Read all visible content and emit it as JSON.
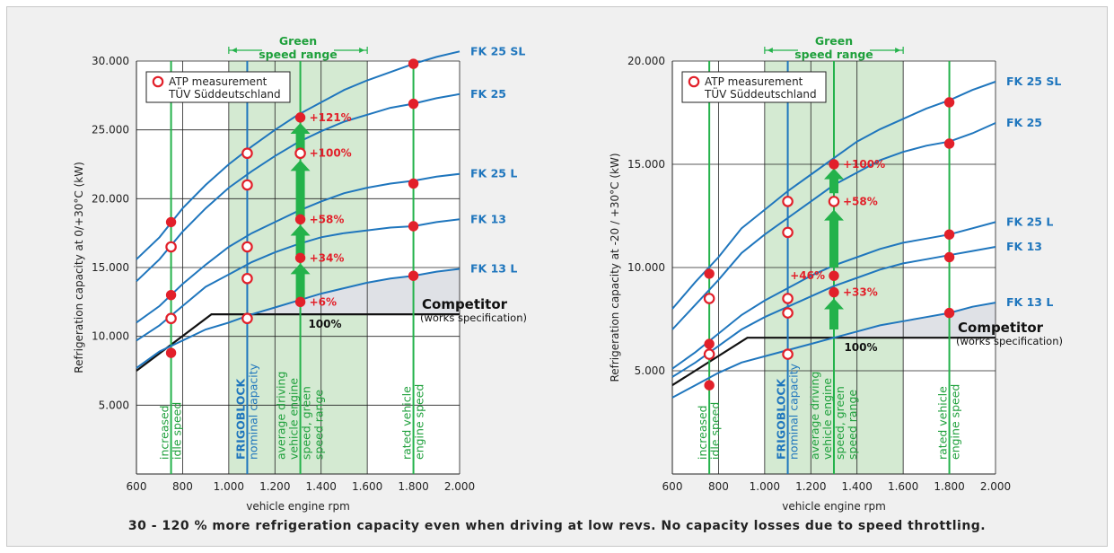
{
  "caption": "30 - 120 % more refrigeration capacity even when driving at low revs. No capacity losses due to speed throttling.",
  "colors": {
    "curve_blue": "#1f76bd",
    "green": "#24b24b",
    "green_text": "#1fa03c",
    "green_band": "#d4ead2",
    "red": "#e2202a",
    "competitor": "#111111",
    "shade": "#dfe1e6"
  },
  "chart_data": [
    {
      "type": "line",
      "xlabel": "vehicle engine rpm",
      "ylabel": "Refrigeration capacity at 0/+30°C (kW)",
      "xlim": [
        600,
        2000
      ],
      "ylim": [
        0,
        30000
      ],
      "xticks": [
        {
          "v": 600,
          "t": "600"
        },
        {
          "v": 800,
          "t": "800"
        },
        {
          "v": 1000,
          "t": "1.000"
        },
        {
          "v": 1200,
          "t": "1.200"
        },
        {
          "v": 1400,
          "t": "1.400"
        },
        {
          "v": 1600,
          "t": "1.600"
        },
        {
          "v": 1800,
          "t": "1.800"
        },
        {
          "v": 2000,
          "t": "2.000"
        }
      ],
      "yticks": [
        {
          "v": 5000,
          "t": "5.000"
        },
        {
          "v": 10000,
          "t": "10.000"
        },
        {
          "v": 15000,
          "t": "15.000"
        },
        {
          "v": 20000,
          "t": "20.000"
        },
        {
          "v": 25000,
          "t": "25.000"
        },
        {
          "v": 30000,
          "t": "30.000"
        }
      ],
      "green_range": {
        "from": 1000,
        "to": 1600,
        "label": "Green\nspeed range"
      },
      "legend": {
        "marker": "open red circle",
        "text": "ATP measurement\nTÜV Süddeutschland",
        "position": "top-left"
      },
      "series": [
        {
          "name": "FK 25 SL",
          "x": [
            600,
            700,
            800,
            900,
            1000,
            1100,
            1200,
            1300,
            1400,
            1500,
            1600,
            1700,
            1800,
            1900,
            2000
          ],
          "y": [
            15600,
            17200,
            19300,
            21000,
            22500,
            23800,
            25000,
            26100,
            27000,
            27900,
            28600,
            29200,
            29800,
            30300,
            30700
          ]
        },
        {
          "name": "FK 25",
          "x": [
            600,
            700,
            800,
            900,
            1000,
            1100,
            1200,
            1300,
            1400,
            1500,
            1600,
            1700,
            1800,
            1900,
            2000
          ],
          "y": [
            14000,
            15600,
            17600,
            19300,
            20800,
            22000,
            23100,
            24100,
            24900,
            25600,
            26100,
            26600,
            26900,
            27300,
            27600
          ]
        },
        {
          "name": "FK 25 L",
          "x": [
            600,
            700,
            800,
            900,
            1000,
            1100,
            1200,
            1300,
            1400,
            1500,
            1600,
            1700,
            1800,
            1900,
            2000
          ],
          "y": [
            11000,
            12200,
            13800,
            15200,
            16500,
            17500,
            18300,
            19100,
            19800,
            20400,
            20800,
            21100,
            21300,
            21600,
            21800
          ]
        },
        {
          "name": "FK 13",
          "x": [
            600,
            700,
            800,
            900,
            1000,
            1100,
            1200,
            1300,
            1400,
            1500,
            1600,
            1700,
            1800,
            1900,
            2000
          ],
          "y": [
            9700,
            10800,
            12200,
            13600,
            14500,
            15400,
            16100,
            16700,
            17200,
            17500,
            17700,
            17900,
            18000,
            18300,
            18500
          ]
        },
        {
          "name": "FK 13 L",
          "x": [
            600,
            700,
            800,
            900,
            1000,
            1100,
            1200,
            1300,
            1400,
            1500,
            1600,
            1700,
            1800,
            1900,
            2000
          ],
          "y": [
            7700,
            8900,
            9700,
            10500,
            11000,
            11600,
            12100,
            12600,
            13100,
            13500,
            13900,
            14200,
            14400,
            14700,
            14900
          ]
        }
      ],
      "competitor": {
        "name": "Competitor",
        "note": "(works specification)",
        "pct": "100%",
        "x": [
          600,
          925,
          2000
        ],
        "y": [
          7500,
          11600,
          11600
        ]
      },
      "vlines": [
        {
          "x": 750,
          "kind": "green",
          "label": "increased\nidle speed"
        },
        {
          "x": 1080,
          "kind": "blue",
          "label": "FRIGOBLOCK\nnominal capacity"
        },
        {
          "x": 1310,
          "kind": "green",
          "label": "average driving\nvehicle engine\nspeed, green\nspeed range"
        },
        {
          "x": 1800,
          "kind": "green",
          "label": "rated vehicle\nengine speed"
        }
      ],
      "points": [
        {
          "x": 750,
          "y": 18300,
          "open": false
        },
        {
          "x": 750,
          "y": 16500,
          "open": true
        },
        {
          "x": 750,
          "y": 13000,
          "open": false
        },
        {
          "x": 750,
          "y": 11300,
          "open": true
        },
        {
          "x": 750,
          "y": 8800,
          "open": false
        },
        {
          "x": 1080,
          "y": 23300,
          "open": true
        },
        {
          "x": 1080,
          "y": 21000,
          "open": true
        },
        {
          "x": 1080,
          "y": 16500,
          "open": true
        },
        {
          "x": 1080,
          "y": 14200,
          "open": true
        },
        {
          "x": 1080,
          "y": 11300,
          "open": true
        },
        {
          "x": 1310,
          "y": 25900,
          "open": false
        },
        {
          "x": 1310,
          "y": 23300,
          "open": true
        },
        {
          "x": 1310,
          "y": 18500,
          "open": false
        },
        {
          "x": 1310,
          "y": 15700,
          "open": false
        },
        {
          "x": 1310,
          "y": 12500,
          "open": false
        },
        {
          "x": 1800,
          "y": 29800,
          "open": false
        },
        {
          "x": 1800,
          "y": 26900,
          "open": false
        },
        {
          "x": 1800,
          "y": 21100,
          "open": false
        },
        {
          "x": 1800,
          "y": 18000,
          "open": false
        },
        {
          "x": 1800,
          "y": 14400,
          "open": false
        }
      ],
      "arrows": [
        [
          12700,
          15300
        ],
        [
          15900,
          18100
        ],
        [
          18700,
          22800
        ],
        [
          23500,
          25500
        ]
      ],
      "annotations": [
        {
          "x": 1310,
          "y": 25900,
          "text": "+121%"
        },
        {
          "x": 1310,
          "y": 23300,
          "text": "+100%"
        },
        {
          "x": 1310,
          "y": 18500,
          "text": "+58%"
        },
        {
          "x": 1310,
          "y": 15700,
          "text": "+34%"
        },
        {
          "x": 1310,
          "y": 12500,
          "text": "+6%"
        }
      ]
    },
    {
      "type": "line",
      "xlabel": "vehicle engine rpm",
      "ylabel": "Refrigeration capacity at -20 / +30°C (kW)",
      "xlim": [
        600,
        2000
      ],
      "ylim": [
        0,
        20000
      ],
      "xticks": [
        {
          "v": 600,
          "t": "600"
        },
        {
          "v": 800,
          "t": "800"
        },
        {
          "v": 1000,
          "t": "1.000"
        },
        {
          "v": 1200,
          "t": "1.200"
        },
        {
          "v": 1400,
          "t": "1.400"
        },
        {
          "v": 1600,
          "t": "1.600"
        },
        {
          "v": 1800,
          "t": "1.800"
        },
        {
          "v": 2000,
          "t": "2.000"
        }
      ],
      "yticks": [
        {
          "v": 5000,
          "t": "5.000"
        },
        {
          "v": 10000,
          "t": "10.000"
        },
        {
          "v": 15000,
          "t": "15.000"
        },
        {
          "v": 20000,
          "t": "20.000"
        }
      ],
      "green_range": {
        "from": 1000,
        "to": 1600,
        "label": "Green\nspeed range"
      },
      "legend": {
        "marker": "open red circle",
        "text": "ATP measurement\nTÜV Süddeutschland",
        "position": "top-left"
      },
      "series": [
        {
          "name": "FK 25 SL",
          "x": [
            600,
            700,
            800,
            900,
            1000,
            1100,
            1200,
            1300,
            1400,
            1500,
            1600,
            1700,
            1800,
            1900,
            2000
          ],
          "y": [
            8000,
            9300,
            10500,
            11900,
            12800,
            13700,
            14500,
            15300,
            16100,
            16700,
            17200,
            17700,
            18100,
            18600,
            19000
          ]
        },
        {
          "name": "FK 25",
          "x": [
            600,
            700,
            800,
            900,
            1000,
            1100,
            1200,
            1300,
            1400,
            1500,
            1600,
            1700,
            1800,
            1900,
            2000
          ],
          "y": [
            7000,
            8200,
            9400,
            10700,
            11600,
            12400,
            13200,
            14000,
            14600,
            15200,
            15600,
            15900,
            16100,
            16500,
            17000
          ]
        },
        {
          "name": "FK 25 L",
          "x": [
            600,
            700,
            800,
            900,
            1000,
            1100,
            1200,
            1300,
            1400,
            1500,
            1600,
            1700,
            1800,
            1900,
            2000
          ],
          "y": [
            5100,
            5900,
            6800,
            7700,
            8400,
            9000,
            9600,
            10100,
            10500,
            10900,
            11200,
            11400,
            11600,
            11900,
            12200
          ]
        },
        {
          "name": "FK 13",
          "x": [
            600,
            700,
            800,
            900,
            1000,
            1100,
            1200,
            1300,
            1400,
            1500,
            1600,
            1700,
            1800,
            1900,
            2000
          ],
          "y": [
            4700,
            5400,
            6200,
            7000,
            7600,
            8100,
            8600,
            9100,
            9500,
            9900,
            10200,
            10400,
            10600,
            10800,
            11000
          ]
        },
        {
          "name": "FK 13 L",
          "x": [
            600,
            700,
            800,
            900,
            1000,
            1100,
            1200,
            1300,
            1400,
            1500,
            1600,
            1700,
            1800,
            1900,
            2000
          ],
          "y": [
            3700,
            4300,
            4900,
            5400,
            5700,
            6000,
            6300,
            6600,
            6900,
            7200,
            7400,
            7600,
            7800,
            8100,
            8300
          ]
        }
      ],
      "competitor": {
        "name": "Competitor",
        "note": "(works specification)",
        "pct": "100%",
        "x": [
          600,
          925,
          2000
        ],
        "y": [
          4300,
          6600,
          6600
        ]
      },
      "vlines": [
        {
          "x": 760,
          "kind": "green",
          "label": "increased\nidle speed"
        },
        {
          "x": 1100,
          "kind": "blue",
          "label": "FRIGOBLOCK\nnominal capacity"
        },
        {
          "x": 1300,
          "kind": "green",
          "label": "average driving\nvehicle engine\nspeed, green\nspeed range"
        },
        {
          "x": 1800,
          "kind": "green",
          "label": "rated vehicle\nengine speed"
        }
      ],
      "points": [
        {
          "x": 760,
          "y": 9700,
          "open": false
        },
        {
          "x": 760,
          "y": 8500,
          "open": true
        },
        {
          "x": 760,
          "y": 6300,
          "open": false
        },
        {
          "x": 760,
          "y": 5800,
          "open": true
        },
        {
          "x": 760,
          "y": 4300,
          "open": false
        },
        {
          "x": 1100,
          "y": 13200,
          "open": true
        },
        {
          "x": 1100,
          "y": 11700,
          "open": true
        },
        {
          "x": 1100,
          "y": 8500,
          "open": true
        },
        {
          "x": 1100,
          "y": 7800,
          "open": true
        },
        {
          "x": 1100,
          "y": 5800,
          "open": true
        },
        {
          "x": 1300,
          "y": 15000,
          "open": false
        },
        {
          "x": 1300,
          "y": 13200,
          "open": true
        },
        {
          "x": 1300,
          "y": 9600,
          "open": false
        },
        {
          "x": 1300,
          "y": 8800,
          "open": false
        },
        {
          "x": 1800,
          "y": 18000,
          "open": false
        },
        {
          "x": 1800,
          "y": 16000,
          "open": false
        },
        {
          "x": 1800,
          "y": 11600,
          "open": false
        },
        {
          "x": 1800,
          "y": 10500,
          "open": false
        },
        {
          "x": 1800,
          "y": 7800,
          "open": false
        }
      ],
      "arrows": [
        [
          7000,
          8500
        ],
        [
          10000,
          12800
        ],
        [
          13600,
          14800
        ]
      ],
      "annotations": [
        {
          "x": 1300,
          "y": 15000,
          "text": "+100%"
        },
        {
          "x": 1300,
          "y": 13200,
          "text": "+58%"
        },
        {
          "x": 1300,
          "y": 9600,
          "text": "+46%",
          "side": "left"
        },
        {
          "x": 1300,
          "y": 8800,
          "text": "+33%"
        }
      ]
    }
  ]
}
